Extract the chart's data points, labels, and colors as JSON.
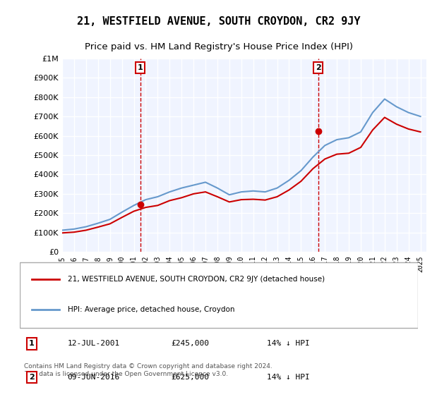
{
  "title": "21, WESTFIELD AVENUE, SOUTH CROYDON, CR2 9JY",
  "subtitle": "Price paid vs. HM Land Registry's House Price Index (HPI)",
  "title_fontsize": 11,
  "subtitle_fontsize": 9.5,
  "ylabel_ticks": [
    "£0",
    "£100K",
    "£200K",
    "£300K",
    "£400K",
    "£500K",
    "£600K",
    "£700K",
    "£800K",
    "£900K",
    "£1M"
  ],
  "ytick_values": [
    0,
    100000,
    200000,
    300000,
    400000,
    500000,
    600000,
    700000,
    800000,
    900000,
    1000000
  ],
  "ylim": [
    0,
    1000000
  ],
  "xlim_start": 1995.0,
  "xlim_end": 2025.5,
  "sale1_x": 2001.54,
  "sale1_y": 245000,
  "sale1_label": "1",
  "sale1_date": "12-JUL-2001",
  "sale1_price": "£245,000",
  "sale1_hpi": "14% ↓ HPI",
  "sale2_x": 2016.44,
  "sale2_y": 625000,
  "sale2_label": "2",
  "sale2_date": "09-JUN-2016",
  "sale2_price": "£625,000",
  "sale2_hpi": "14% ↓ HPI",
  "line_color_red": "#cc0000",
  "line_color_blue": "#6699cc",
  "marker_color": "#cc0000",
  "bg_color": "#ffffff",
  "plot_bg_color": "#f0f4ff",
  "grid_color": "#ffffff",
  "legend_line1": "21, WESTFIELD AVENUE, SOUTH CROYDON, CR2 9JY (detached house)",
  "legend_line2": "HPI: Average price, detached house, Croydon",
  "footnote": "Contains HM Land Registry data © Crown copyright and database right 2024.\nThis data is licensed under the Open Government Licence v3.0.",
  "hpi_years": [
    1995,
    1996,
    1997,
    1998,
    1999,
    2000,
    2001,
    2002,
    2003,
    2004,
    2005,
    2006,
    2007,
    2008,
    2009,
    2010,
    2011,
    2012,
    2013,
    2014,
    2015,
    2016,
    2017,
    2018,
    2019,
    2020,
    2021,
    2022,
    2023,
    2024,
    2025
  ],
  "hpi_values": [
    112000,
    118000,
    130000,
    148000,
    168000,
    205000,
    240000,
    270000,
    285000,
    310000,
    330000,
    345000,
    360000,
    330000,
    295000,
    310000,
    315000,
    310000,
    330000,
    370000,
    420000,
    490000,
    550000,
    580000,
    590000,
    620000,
    720000,
    790000,
    750000,
    720000,
    700000
  ],
  "price_years": [
    1995.0,
    1996.0,
    1997.0,
    1998.0,
    1999.0,
    2000.0,
    2001.0,
    2002.0,
    2003.0,
    2004.0,
    2005.0,
    2006.0,
    2007.0,
    2008.0,
    2009.0,
    2010.0,
    2011.0,
    2012.0,
    2013.0,
    2014.0,
    2015.0,
    2016.0,
    2017.0,
    2018.0,
    2019.0,
    2020.0,
    2021.0,
    2022.0,
    2023.0,
    2024.0,
    2025.0
  ],
  "price_values": [
    98000,
    102000,
    112000,
    128000,
    145000,
    178000,
    210000,
    230000,
    240000,
    265000,
    280000,
    300000,
    310000,
    285000,
    258000,
    270000,
    272000,
    268000,
    285000,
    320000,
    365000,
    430000,
    480000,
    505000,
    510000,
    540000,
    630000,
    695000,
    660000,
    635000,
    620000
  ]
}
